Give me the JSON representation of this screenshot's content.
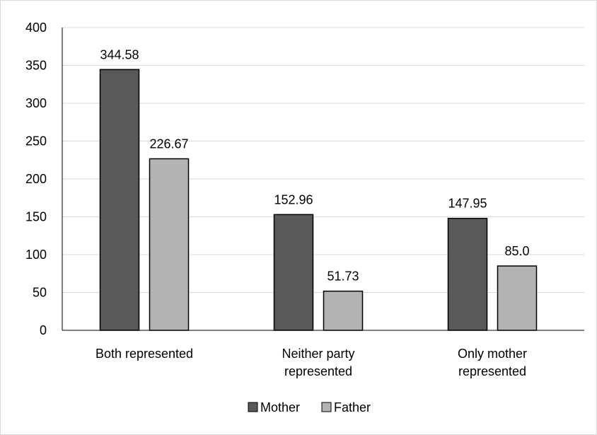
{
  "chart_data": {
    "type": "bar",
    "title": "",
    "xlabel": "",
    "ylabel": "",
    "categories": [
      [
        "Both represented"
      ],
      [
        "Neither party",
        "represented"
      ],
      [
        "Only mother",
        "represented"
      ]
    ],
    "series": [
      {
        "name": "Mother",
        "values": [
          344.58,
          152.96,
          147.95
        ],
        "labels": [
          "344.58",
          "152.96",
          "147.95"
        ],
        "color": "#595959"
      },
      {
        "name": "Father",
        "values": [
          226.67,
          51.73,
          85.0
        ],
        "labels": [
          "226.67",
          "51.73",
          "85.0"
        ],
        "color": "#b3b3b3"
      }
    ],
    "ylim": [
      0,
      400
    ],
    "yticks": [
      0,
      50,
      100,
      150,
      200,
      250,
      300,
      350,
      400
    ],
    "grid": true,
    "legend_position": "bottom"
  }
}
